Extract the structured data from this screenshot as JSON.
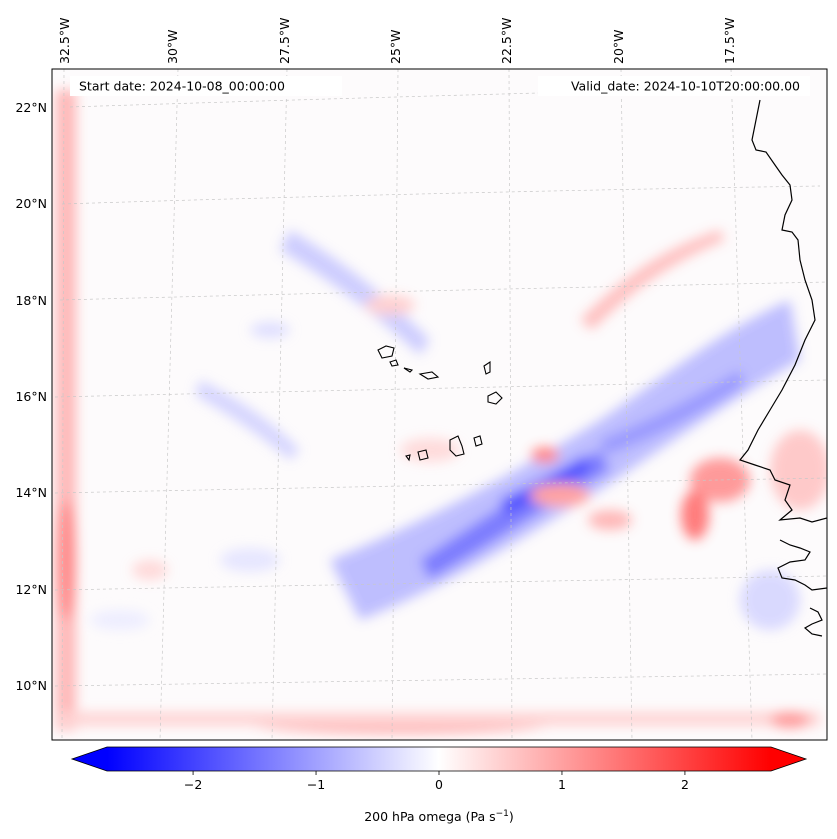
{
  "map": {
    "header": {
      "start_label": "Start date: 2024-10-08_00:00:00",
      "valid_label": "Valid_date: 2024-10-10T20:00:00.00"
    },
    "lon_labels": [
      "32.5°W",
      "30°W",
      "27.5°W",
      "25°W",
      "22.5°W",
      "20°W",
      "17.5°W"
    ],
    "lat_labels": [
      "22°N",
      "20°N",
      "18°N",
      "16°N",
      "14°N",
      "12°N",
      "10°N"
    ],
    "field": "200 hPa omega",
    "colormap": "bwr",
    "colors": {
      "negative": "#0000ff",
      "zero": "#ffffff",
      "positive": "#ff0000",
      "coast": "#000000",
      "grid": "#bbbbbb"
    }
  },
  "colorbar": {
    "label_prefix": "200 hPa omega (Pa s",
    "label_exp": "−1",
    "label_suffix": ")",
    "range": [
      -2.7,
      2.7
    ],
    "ticks": [
      -2,
      -1,
      0,
      1,
      2
    ],
    "tick_labels": [
      "−2",
      "−1",
      "0",
      "1",
      "2"
    ],
    "extend": "both"
  }
}
